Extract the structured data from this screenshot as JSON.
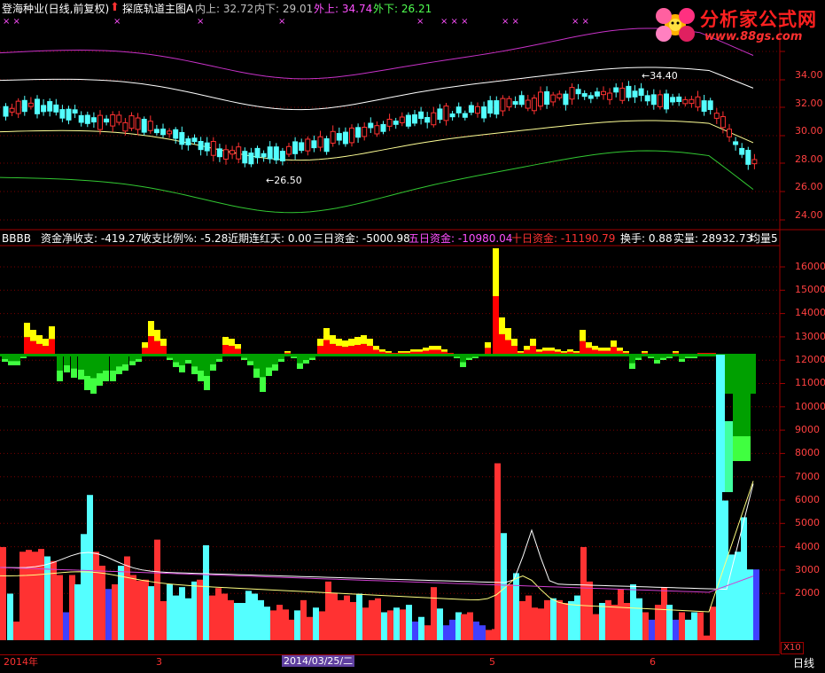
{
  "title_bar": {
    "stock": "登海种业(日线,前复权)",
    "indicator": "探底轨道主图A",
    "inner_upper": "内上: 32.72",
    "inner_lower": "内下: 29.01",
    "outer_upper": "外上: 34.74",
    "outer_lower": "外下: 26.21"
  },
  "logo": {
    "title": "分析家公式网",
    "url": "www.88gs.com"
  },
  "price_panel": {
    "high_note": "34.40",
    "low_note": "26.50",
    "axis_ticks": [
      "34.00",
      "32.00",
      "30.00",
      "28.00",
      "26.00",
      "24.00"
    ],
    "xmarks": [
      "× ×",
      "×",
      "×",
      "×",
      "×",
      "× × ×",
      "× ×",
      "× ×"
    ]
  },
  "indicator_bar": {
    "name": "BBBB",
    "net_flow": "资金净收支: -419.27",
    "ratio": "收支比例%: -5.28",
    "streak": "近期连红天: 0.00",
    "three_day": "三日资金: -5000.98",
    "five_day": "五日资金: -10980.04",
    "ten_day": "十日资金: -11190.79",
    "turnover": "换手: 0.88",
    "volume": "实量: 28932.73",
    "avg": "均量5"
  },
  "volume_panel": {
    "axis_ticks": [
      "16000",
      "15000",
      "14000",
      "13000",
      "12000",
      "11000",
      "10000",
      "9000",
      "8000",
      "7000",
      "6000",
      "5000",
      "4000",
      "3000",
      "2000"
    ],
    "scale": "X10"
  },
  "bottom_axis": {
    "year": "2014年",
    "m3": "3",
    "date": "2014/03/25/二",
    "m5": "5",
    "m6": "6",
    "period": "日线"
  },
  "colors": {
    "up": "#ff3232",
    "down": "#54ffff",
    "outer_upper": "#c832c8",
    "outer_lower": "#32c832",
    "mid_band": "#ffffff",
    "inner_band": "#ffff96",
    "flow_red": "#ff0000",
    "flow_yellow": "#ffff00",
    "flow_green": "#00a000",
    "flow_lime": "#40ff40"
  }
}
